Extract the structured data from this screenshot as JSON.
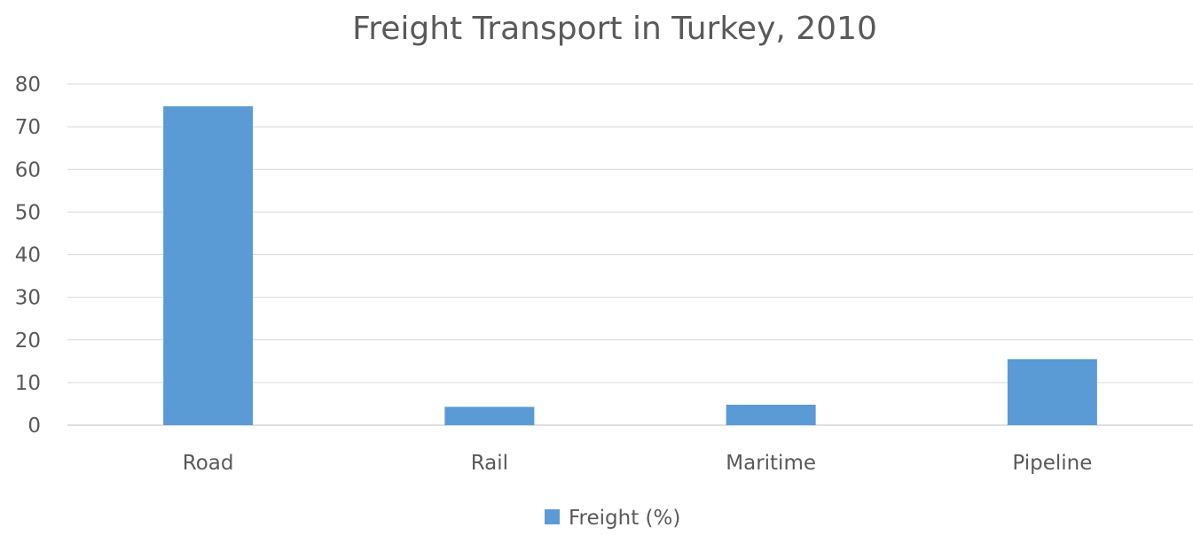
{
  "chart_data": {
    "type": "bar",
    "title": "Freight Transport in Turkey, 2010",
    "xlabel": "",
    "ylabel": "",
    "categories": [
      "Road",
      "Rail",
      "Maritime",
      "Pipeline"
    ],
    "series": [
      {
        "name": "Freight (%)",
        "values": [
          74.8,
          4.3,
          4.8,
          15.5
        ],
        "color": "#5b9bd5"
      }
    ],
    "ylim": [
      0,
      80
    ],
    "yticks": [
      "0",
      "10",
      "20",
      "30",
      "40",
      "50",
      "60",
      "70",
      "80"
    ],
    "grid": true,
    "legend_position": "bottom",
    "colors": {
      "text": "#595959",
      "title": "#595959",
      "grid": "#d9d9d9",
      "axis": "#bfbfbf"
    }
  }
}
